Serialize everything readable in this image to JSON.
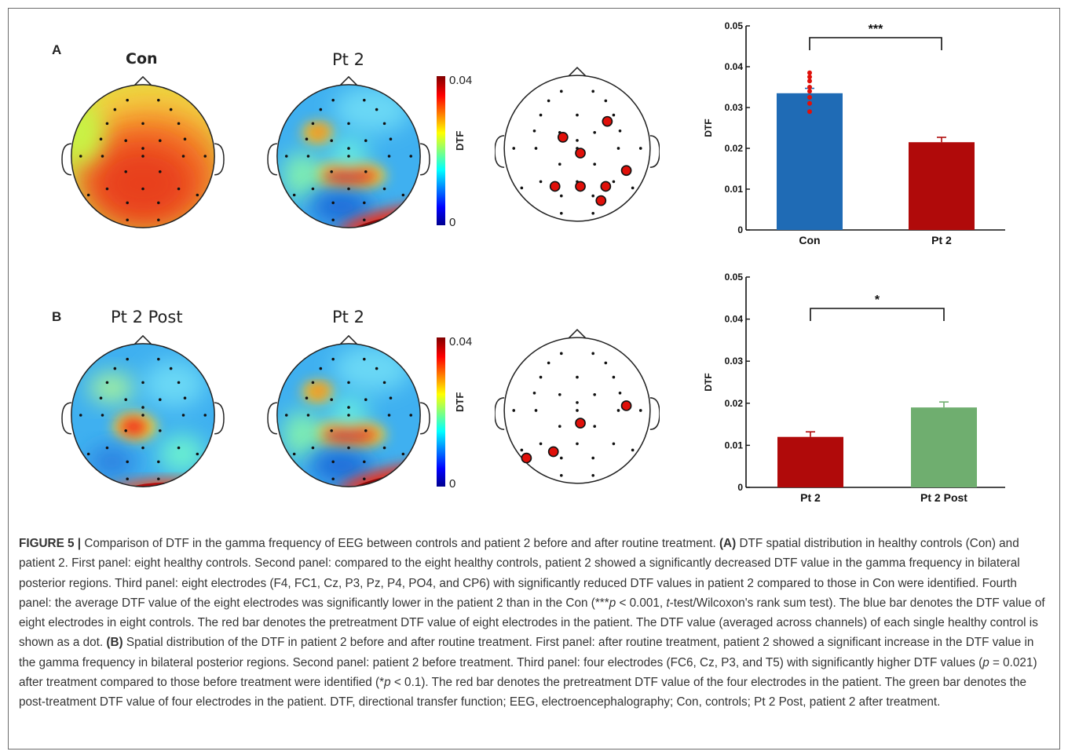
{
  "panel_a": {
    "letter": "A",
    "maps": [
      {
        "title": "Con"
      },
      {
        "title": "Pt 2"
      }
    ],
    "colorbar": {
      "max_label": "0.04",
      "min_label": "0",
      "label": "DTF"
    },
    "electrodes_highlighted": 8
  },
  "panel_b": {
    "letter": "B",
    "maps": [
      {
        "title": "Pt 2 Post"
      },
      {
        "title": "Pt 2"
      }
    ],
    "colorbar": {
      "max_label": "0.04",
      "min_label": "0",
      "label": "DTF"
    },
    "electrodes_highlighted": 4
  },
  "chart_data": [
    {
      "type": "bar",
      "categories": [
        "Con",
        "Pt 2"
      ],
      "values": [
        0.0335,
        0.0215
      ],
      "errors": [
        0.0012,
        0.0012
      ],
      "colors": [
        "#1f6bb5",
        "#b00a0a"
      ],
      "dots": [
        0.0385,
        0.0375,
        0.0365,
        0.035,
        0.034,
        0.0325,
        0.031,
        0.029
      ],
      "ylabel": "DTF",
      "ylim": [
        0,
        0.05
      ],
      "yticks": [
        "0",
        "0.01",
        "0.02",
        "0.03",
        "0.04",
        "0.05"
      ],
      "significance": "***"
    },
    {
      "type": "bar",
      "categories": [
        "Pt 2",
        "Pt 2 Post"
      ],
      "values": [
        0.012,
        0.019
      ],
      "errors": [
        0.0012,
        0.0013
      ],
      "colors": [
        "#b00a0a",
        "#6fae6f"
      ],
      "ylabel": "DTF",
      "ylim": [
        0,
        0.05
      ],
      "yticks": [
        "0",
        "0.01",
        "0.02",
        "0.03",
        "0.04",
        "0.05"
      ],
      "significance": "*"
    }
  ],
  "caption": {
    "lead": "FIGURE 5 |",
    "s1": " Comparison of DTF in the gamma frequency of EEG between controls and patient 2 before and after routine treatment. ",
    "a_label": "(A)",
    "s2": " DTF spatial distribution in healthy controls (Con) and patient 2. First panel: eight healthy controls. Second panel: compared to the eight healthy controls, patient 2 showed a significantly decreased DTF value in the gamma frequency in bilateral posterior regions. Third panel: eight electrodes (F4, FC1, Cz, P3, Pz, P4, PO4, and CP6) with significantly reduced DTF values in patient 2 compared to those in Con were identified. Fourth panel: the average DTF value of the eight electrodes was significantly lower in the patient 2 than in the Con (***",
    "p1": "p",
    "s3": " < 0.001, ",
    "t1": "t",
    "s4": "-test/Wilcoxon's rank sum test). The blue bar denotes the DTF value of eight electrodes in eight controls. The red bar denotes the pretreatment DTF value of eight electrodes in the patient. The DTF value (averaged across channels) of each single healthy control is shown as a dot. ",
    "b_label": "(B)",
    "s5": " Spatial distribution of the DTF in patient 2 before and after routine treatment. First panel: after routine treatment, patient 2 showed a significant increase in the DTF value in the gamma frequency in bilateral posterior regions. Second panel: patient 2 before treatment. Third panel: four electrodes (FC6, Cz, P3, and T5) with significantly higher DTF values (",
    "p2": "p",
    "s6": " = 0.021) after treatment compared to those before treatment were identified (*",
    "p3": "p",
    "s7": " < 0.1). The red bar denotes the pretreatment DTF value of the four electrodes in the patient. The green bar denotes the post-treatment DTF value of four electrodes in the patient. DTF, directional transfer function; EEG, electroencephalography; Con, controls; Pt 2 Post, patient 2 after treatment."
  }
}
